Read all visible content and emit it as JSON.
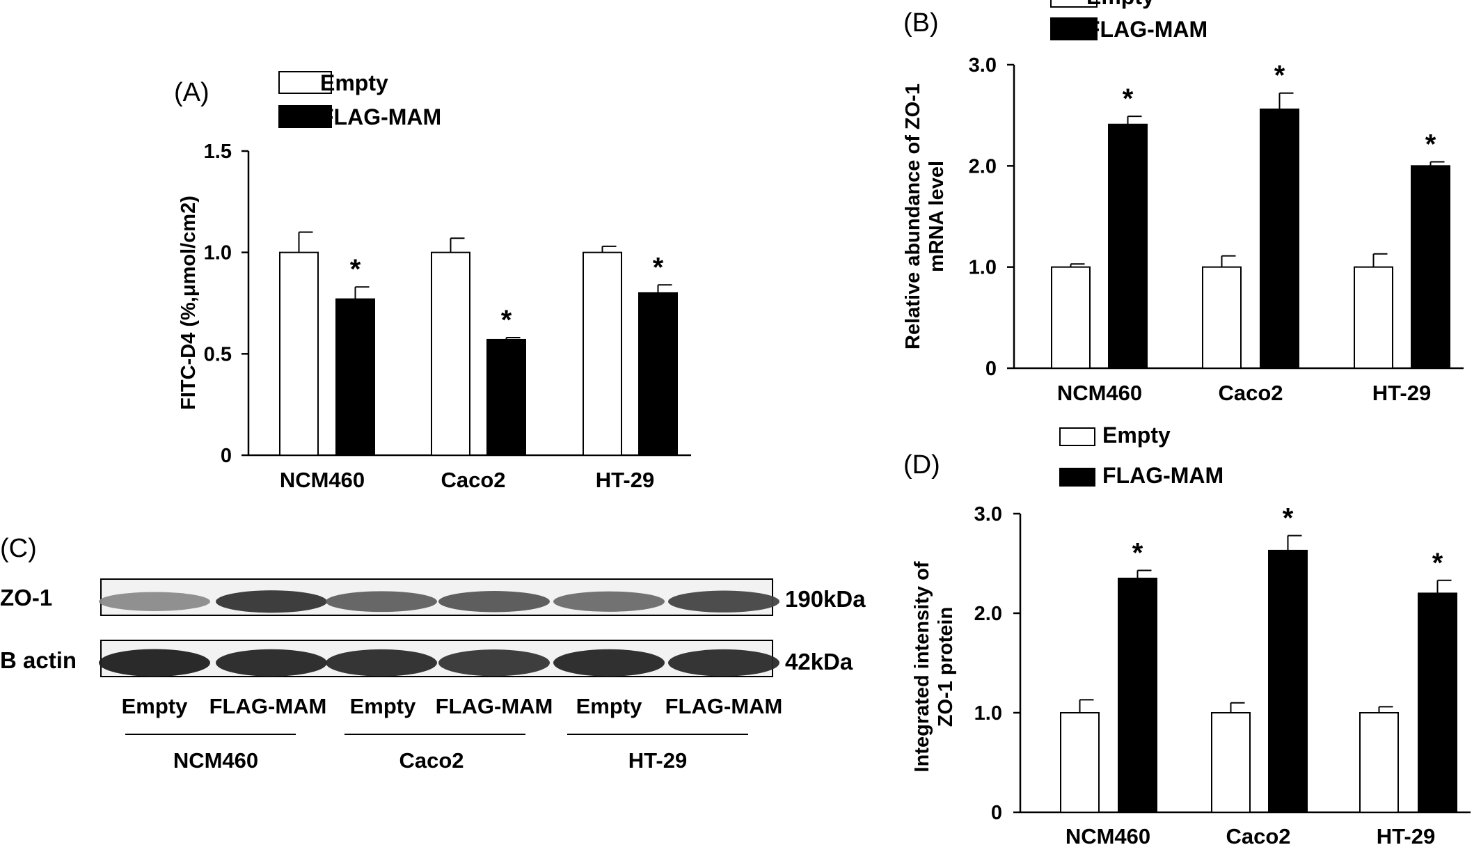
{
  "legend": {
    "empty": "Empty",
    "flag": "FLAG-MAM"
  },
  "colors": {
    "empty_fill": "#ffffff",
    "flag_fill": "#000000",
    "axis": "#000000"
  },
  "panels": [
    {
      "letter": "(A)",
      "ylabel_lines": [
        "FITC-D4 (%,μmol/cm2)"
      ],
      "yticks": [
        "0",
        "0.5",
        "1.0",
        "1.5"
      ],
      "ytick_values": [
        0,
        0.5,
        1.0,
        1.5
      ],
      "star": "*"
    },
    {
      "letter": "(B)",
      "ylabel_lines": [
        "Relative abundance of ZO-1",
        "mRNA  level"
      ],
      "yticks": [
        "0",
        "1.0",
        "2.0",
        "3.0"
      ],
      "ytick_values": [
        0,
        1.0,
        2.0,
        3.0
      ],
      "star": "*"
    },
    {
      "letter": "(D)",
      "ylabel_lines": [
        "Integrated intensity of",
        "ZO-1 protein"
      ],
      "yticks": [
        "0",
        "1.0",
        "2.0",
        "3.0"
      ],
      "ytick_values": [
        0,
        1.0,
        2.0,
        3.0
      ],
      "star": "*"
    }
  ],
  "chart_data": [
    {
      "type": "bar",
      "categories": [
        "NCM460",
        "Caco2",
        "HT-29"
      ],
      "ylim": [
        0,
        1.5
      ],
      "series": [
        {
          "name": "Empty",
          "values": [
            1.0,
            1.0,
            1.0
          ],
          "errors": [
            0.1,
            0.07,
            0.03
          ]
        },
        {
          "name": "FLAG-MAM",
          "values": [
            0.77,
            0.57,
            0.8
          ],
          "errors": [
            0.06,
            0.01,
            0.04
          ],
          "significant": [
            true,
            true,
            true
          ]
        }
      ]
    },
    {
      "type": "bar",
      "categories": [
        "NCM460",
        "Caco2",
        "HT-29"
      ],
      "ylim": [
        0,
        3.0
      ],
      "series": [
        {
          "name": "Empty",
          "values": [
            1.0,
            1.0,
            1.0
          ],
          "errors": [
            0.03,
            0.11,
            0.13
          ]
        },
        {
          "name": "FLAG-MAM",
          "values": [
            2.41,
            2.56,
            2.0
          ],
          "errors": [
            0.08,
            0.16,
            0.04
          ],
          "significant": [
            true,
            true,
            true
          ]
        }
      ]
    },
    {
      "type": "bar",
      "categories": [
        "NCM460",
        "Caco2",
        "HT-29"
      ],
      "ylim": [
        0,
        3.0
      ],
      "series": [
        {
          "name": "Empty",
          "values": [
            1.0,
            1.0,
            1.0
          ],
          "errors": [
            0.13,
            0.1,
            0.06
          ]
        },
        {
          "name": "FLAG-MAM",
          "values": [
            2.35,
            2.63,
            2.2
          ],
          "errors": [
            0.08,
            0.15,
            0.13
          ],
          "significant": [
            true,
            true,
            true
          ]
        }
      ]
    }
  ],
  "blot": {
    "letter": "(C)",
    "rows": [
      {
        "label": "ZO-1",
        "size": "190kDa",
        "intensity": [
          0.45,
          0.85,
          0.65,
          0.7,
          0.6,
          0.78
        ]
      },
      {
        "label": "B actin",
        "size": "42kDa",
        "intensity": [
          0.95,
          0.92,
          0.9,
          0.85,
          0.92,
          0.9
        ]
      }
    ],
    "lanes": [
      "Empty",
      "FLAG-MAM",
      "Empty",
      "FLAG-MAM",
      "Empty",
      "FLAG-MAM"
    ],
    "groups": [
      "NCM460",
      "Caco2",
      "HT-29"
    ]
  }
}
